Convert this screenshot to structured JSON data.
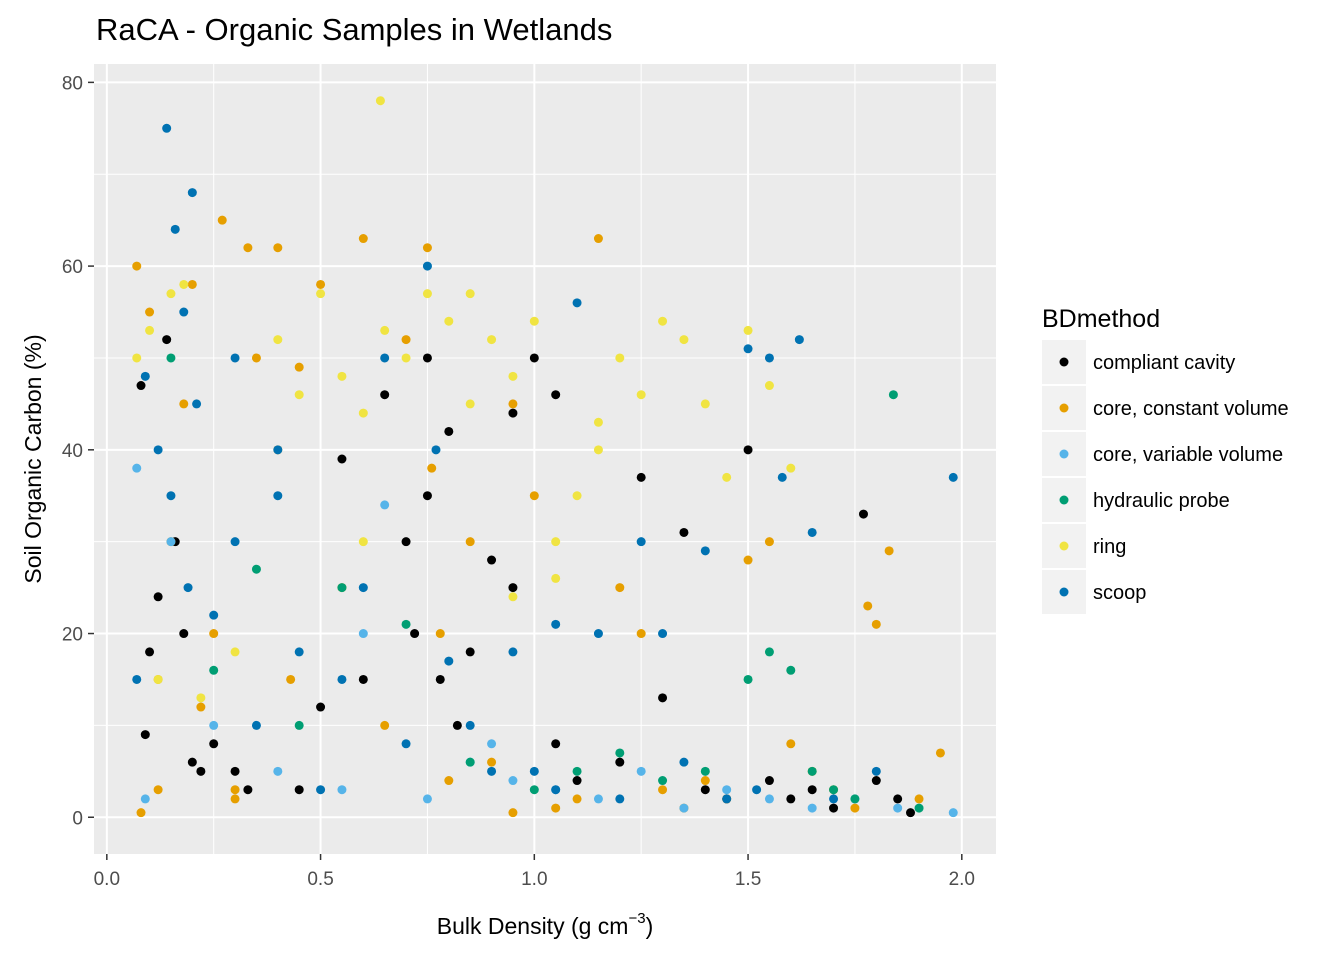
{
  "chart_data": {
    "type": "scatter",
    "title": "RaCA - Organic Samples in Wetlands",
    "xlabel": "Bulk Density (g cm",
    "xlabel_sup": "−3",
    "xlabel_close": ")",
    "ylabel": "Soil Organic Carbon (%)",
    "xlim": [
      -0.03,
      2.08
    ],
    "ylim": [
      -4,
      82
    ],
    "x_ticks": [
      0.0,
      0.5,
      1.0,
      1.5,
      2.0
    ],
    "x_tick_labels": [
      "0.0",
      "0.5",
      "1.0",
      "1.5",
      "2.0"
    ],
    "y_ticks": [
      0,
      20,
      40,
      60,
      80
    ],
    "y_tick_labels": [
      "0",
      "20",
      "40",
      "60",
      "80"
    ],
    "grid": true,
    "panel_background": "#ebebeb",
    "legend": {
      "title": "BDmethod",
      "position": "right"
    },
    "series": [
      {
        "name": "compliant cavity",
        "color": "#000000",
        "x": [
          0.08,
          0.09,
          0.1,
          0.12,
          0.14,
          0.16,
          0.18,
          0.2,
          0.22,
          0.25,
          0.3,
          0.33,
          0.45,
          0.5,
          0.55,
          0.6,
          0.65,
          0.7,
          0.75,
          0.78,
          0.8,
          0.85,
          0.9,
          0.95,
          1.0,
          1.05,
          1.1,
          1.2,
          1.25,
          1.3,
          1.35,
          1.4,
          1.45,
          1.5,
          1.55,
          1.6,
          1.65,
          1.7,
          1.77,
          1.8,
          1.85,
          1.88,
          0.95,
          1.05,
          0.75,
          0.72,
          0.82
        ],
        "y": [
          47,
          9,
          18,
          24,
          52,
          30,
          20,
          6,
          5,
          8,
          5,
          3,
          3,
          12,
          39,
          15,
          46,
          30,
          50,
          15,
          42,
          18,
          28,
          25,
          50,
          8,
          4,
          6,
          37,
          13,
          31,
          3,
          2,
          40,
          4,
          2,
          3,
          1,
          33,
          4,
          2,
          0.5,
          44,
          46,
          35,
          20,
          10
        ]
      },
      {
        "name": "core, constant volume",
        "color": "#e69f00",
        "x": [
          0.07,
          0.08,
          0.1,
          0.12,
          0.15,
          0.18,
          0.2,
          0.22,
          0.25,
          0.27,
          0.3,
          0.33,
          0.35,
          0.4,
          0.43,
          0.45,
          0.5,
          0.55,
          0.6,
          0.65,
          0.7,
          0.75,
          0.76,
          0.78,
          0.8,
          0.85,
          0.9,
          0.95,
          1.0,
          1.05,
          1.1,
          1.15,
          1.2,
          1.25,
          1.3,
          1.35,
          1.4,
          1.45,
          1.5,
          1.55,
          1.6,
          1.65,
          1.7,
          1.75,
          1.78,
          1.8,
          1.83,
          1.9,
          1.95,
          0.12,
          0.4,
          0.3,
          0.95
        ],
        "y": [
          60,
          0.5,
          55,
          3,
          30,
          45,
          58,
          12,
          20,
          65,
          3,
          62,
          50,
          62,
          15,
          49,
          58,
          25,
          63,
          10,
          52,
          62,
          38,
          20,
          4,
          30,
          6,
          45,
          35,
          1,
          2,
          63,
          25,
          20,
          3,
          1,
          4,
          2,
          28,
          30,
          8,
          5,
          3,
          1,
          23,
          21,
          29,
          2,
          7,
          15,
          40,
          2,
          0.5
        ]
      },
      {
        "name": "core, variable volume",
        "color": "#56b4e9",
        "x": [
          0.07,
          0.09,
          0.15,
          0.25,
          0.4,
          0.55,
          0.65,
          0.75,
          0.85,
          0.95,
          1.05,
          1.15,
          1.25,
          1.35,
          1.45,
          1.55,
          1.65,
          1.75,
          1.85,
          1.98,
          0.6,
          0.9
        ],
        "y": [
          38,
          2,
          30,
          10,
          5,
          3,
          34,
          2,
          6,
          4,
          3,
          2,
          5,
          1,
          3,
          2,
          1,
          2,
          1,
          0.5,
          20,
          8
        ]
      },
      {
        "name": "hydraulic probe",
        "color": "#009e73",
        "x": [
          0.25,
          0.35,
          0.55,
          0.7,
          0.85,
          1.0,
          1.1,
          1.2,
          1.3,
          1.4,
          1.5,
          1.55,
          1.6,
          1.65,
          1.7,
          1.75,
          1.84,
          1.9,
          0.15,
          0.45
        ],
        "y": [
          16,
          27,
          25,
          21,
          6,
          3,
          5,
          7,
          4,
          5,
          15,
          18,
          16,
          5,
          3,
          2,
          46,
          1,
          50,
          10
        ]
      },
      {
        "name": "ring",
        "color": "#f0e442",
        "x": [
          0.07,
          0.1,
          0.15,
          0.18,
          0.22,
          0.3,
          0.4,
          0.5,
          0.55,
          0.6,
          0.64,
          0.7,
          0.75,
          0.8,
          0.85,
          0.9,
          0.95,
          1.0,
          1.05,
          1.1,
          1.15,
          1.2,
          1.25,
          1.3,
          1.35,
          1.4,
          1.45,
          1.5,
          1.55,
          1.6,
          0.65,
          0.95,
          1.05,
          1.15,
          0.85,
          0.6,
          0.45,
          0.12
        ],
        "y": [
          50,
          53,
          57,
          58,
          13,
          18,
          52,
          57,
          48,
          30,
          78,
          50,
          57,
          54,
          45,
          52,
          48,
          54,
          30,
          35,
          43,
          50,
          46,
          54,
          52,
          45,
          37,
          53,
          47,
          38,
          53,
          24,
          26,
          40,
          57,
          44,
          46,
          15
        ]
      },
      {
        "name": "scoop",
        "color": "#0072b2",
        "x": [
          0.07,
          0.09,
          0.12,
          0.14,
          0.16,
          0.18,
          0.2,
          0.21,
          0.25,
          0.3,
          0.35,
          0.4,
          0.45,
          0.5,
          0.55,
          0.6,
          0.65,
          0.7,
          0.75,
          0.77,
          0.8,
          0.85,
          0.9,
          0.95,
          1.0,
          1.05,
          1.1,
          1.15,
          1.2,
          1.25,
          1.3,
          1.35,
          1.4,
          1.45,
          1.5,
          1.52,
          1.55,
          1.58,
          1.62,
          1.65,
          1.7,
          1.8,
          1.98,
          0.15,
          0.19,
          1.05,
          0.4,
          0.3
        ],
        "y": [
          15,
          48,
          40,
          75,
          64,
          55,
          68,
          45,
          22,
          30,
          10,
          40,
          18,
          3,
          15,
          25,
          50,
          8,
          60,
          40,
          17,
          10,
          5,
          18,
          5,
          3,
          56,
          20,
          2,
          30,
          20,
          6,
          29,
          2,
          51,
          3,
          50,
          37,
          52,
          31,
          2,
          5,
          37,
          35,
          25,
          21,
          35,
          50
        ]
      }
    ]
  }
}
